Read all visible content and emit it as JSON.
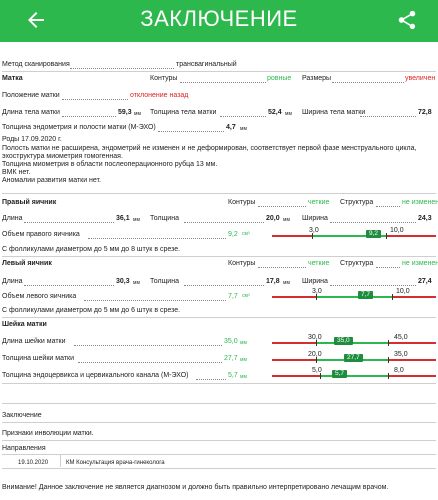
{
  "appbar": {
    "title": "ЗАКЛЮЧЕНИЕ",
    "back_icon": "arrow-back-icon",
    "share_icon": "share-icon",
    "color": "#2db84d"
  },
  "method": {
    "label": "Метод сканирования",
    "value": "трансвагинальный"
  },
  "uterus": {
    "heading": "Матка",
    "contours_label": "Контуры",
    "contours_value": "ровные",
    "size_label": "Размеры",
    "size_value": "увеличен",
    "position_label": "Положение матки",
    "position_value": "отклонение назад",
    "length_label": "Длина тела матки",
    "length_value": "59,3",
    "thickness_label": "Толщина тела матки",
    "thickness_value": "52,4",
    "width_label": "Ширина тела матки",
    "width_value": "72,8",
    "unit_mm": "мм",
    "endo_label": "Толщина эндометрия и полости матки (М-ЭХО)",
    "endo_value": "4,7",
    "notes": [
      "Роды 17.09.2020 г.",
      " Полость матки не расширена, эндометрий не изменен и не деформирован, соответствует  первой фазе менструального цикла,",
      "эхоструктура миометрия гомогенная.",
      " Толщина миометрия в области послеоперационного рубца 13 мм.",
      "ВМК нет.",
      "Аномалии развития матки нет."
    ]
  },
  "right_ovary": {
    "heading": "Правый яичник",
    "contours_label": "Контуры",
    "contours_value": "четкие",
    "structure_label": "Структура",
    "structure_value": "не изменен",
    "length_label": "Длина",
    "length_value": "36,1",
    "thickness_label": "Толщина",
    "thickness_value": "20,0",
    "width_label": "Ширина",
    "width_value": "24,3",
    "volume_label": "Объем правого яичника",
    "volume_value": "9,2",
    "volume_unit": "см³",
    "range_min": "3,0",
    "range_max": "10,0",
    "range_value": 9.2,
    "range_value_label": "9,2",
    "follicles": "С фолликулами диаметром до 5 мм до 8 штук в срезе."
  },
  "left_ovary": {
    "heading": "Левый яичник",
    "contours_label": "Контуры",
    "contours_value": "четкие",
    "structure_label": "Структура",
    "structure_value": "не изменен",
    "length_label": "Длина",
    "length_value": "30,3",
    "thickness_label": "Толщина",
    "thickness_value": "17,8",
    "width_label": "Ширина",
    "width_value": "27,4",
    "volume_label": "Объем левого яичника",
    "volume_value": "7,7",
    "volume_unit": "см³",
    "range_min": "3,0",
    "range_max": "10,0",
    "range_value": 7.7,
    "range_value_label": "7,7",
    "follicles": "С фолликулами диаметром до 5 мм до 6 штук в срезе."
  },
  "cervix": {
    "heading": "Шейка матки",
    "rows": [
      {
        "label": "Длина шейки матки",
        "value": "35,0",
        "min": "30,0",
        "max": "45,0",
        "badge": "35,0",
        "level": 0.33
      },
      {
        "label": "Толщина шейки матки",
        "value": "27,7",
        "min": "20,0",
        "max": "35,0",
        "badge": "27,7",
        "level": 0.51
      },
      {
        "label": "Толщина эндоцервикса и цервикального канала (М-ЭХО)",
        "value": "5,7",
        "min": "5,0",
        "max": "8,0",
        "badge": "5,7",
        "level": 0.23
      }
    ],
    "unit": "мм"
  },
  "conclusion": {
    "heading": "Заключение",
    "text": "Признаки инволюции матки."
  },
  "referrals": {
    "heading": "Направления",
    "date": "19.10.2020",
    "text": "КМ Консультация врача-гинеколога"
  },
  "warning": "Внимание! Данное заключение не является диагнозом и должно быть правильно интерпретировано лечащим врачом."
}
